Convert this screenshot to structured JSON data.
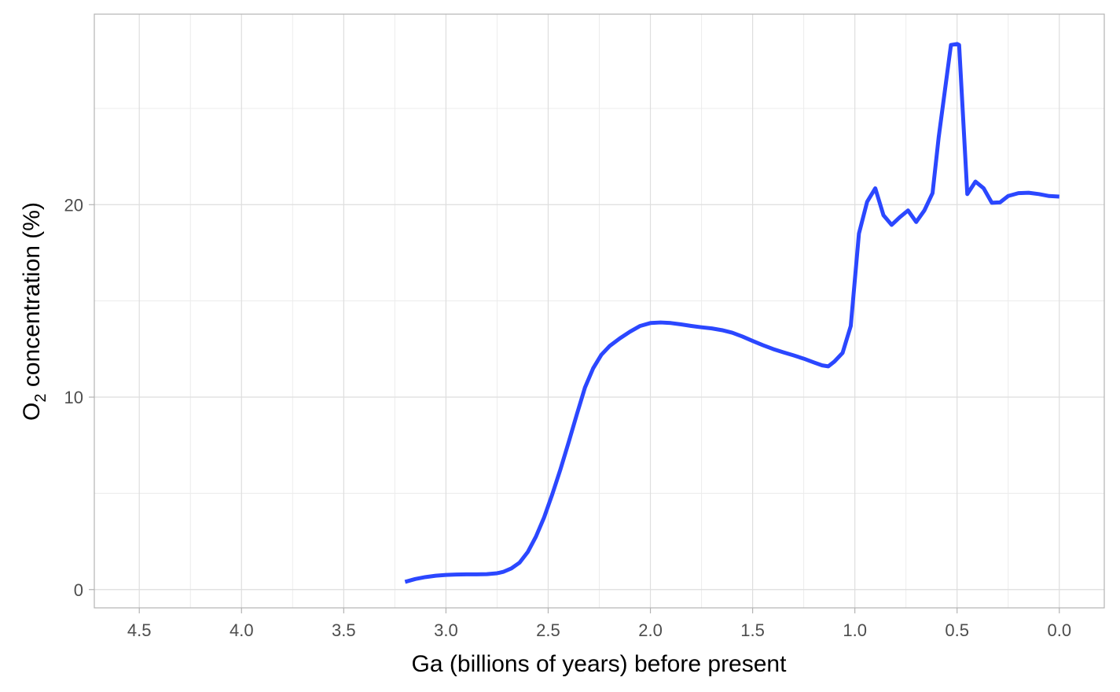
{
  "chart_data": {
    "type": "line",
    "xlabel": "Ga (billions of years) before present",
    "ylabel": {
      "prefix": "O",
      "subscript": "2",
      "suffix": " concentration (%)"
    },
    "x_reversed": true,
    "xlim": [
      4.72,
      -0.22
    ],
    "ylim": [
      -0.95,
      29.9
    ],
    "x_ticks": [
      4.5,
      4.0,
      3.5,
      3.0,
      2.5,
      2.0,
      1.5,
      1.0,
      0.5,
      0.0
    ],
    "x_tick_labels": [
      "4.5",
      "4.0",
      "3.5",
      "3.0",
      "2.5",
      "2.0",
      "1.5",
      "1.0",
      "0.5",
      "0.0"
    ],
    "x_minor_ticks": [
      4.25,
      3.75,
      3.25,
      2.75,
      2.25,
      1.75,
      1.25,
      0.75,
      0.25
    ],
    "y_ticks": [
      0,
      10,
      20
    ],
    "y_tick_labels": [
      "0",
      "10",
      "20"
    ],
    "y_minor_ticks": [
      5,
      15,
      25
    ],
    "grid": true,
    "colors": {
      "line": "#2b47ff",
      "grid_major": "#dedede",
      "grid_minor": "#ececec",
      "panel_border": "#b3b3b3",
      "tick": "#b3b3b3"
    },
    "series": [
      {
        "x": [
          3.2,
          3.15,
          3.1,
          3.05,
          3.0,
          2.95,
          2.9,
          2.85,
          2.8,
          2.75,
          2.72,
          2.68,
          2.64,
          2.6,
          2.56,
          2.52,
          2.48,
          2.44,
          2.4,
          2.36,
          2.32,
          2.28,
          2.24,
          2.2,
          2.15,
          2.1,
          2.05,
          2.0,
          1.95,
          1.9,
          1.85,
          1.8,
          1.75,
          1.7,
          1.65,
          1.6,
          1.55,
          1.5,
          1.45,
          1.4,
          1.35,
          1.3,
          1.25,
          1.2,
          1.16,
          1.13,
          1.1,
          1.06,
          1.02,
          0.98,
          0.94,
          0.9,
          0.86,
          0.82,
          0.78,
          0.74,
          0.7,
          0.66,
          0.62,
          0.59,
          0.53,
          0.5,
          0.49,
          0.45,
          0.41,
          0.37,
          0.33,
          0.29,
          0.25,
          0.2,
          0.15,
          0.1,
          0.05,
          0.0
        ],
        "y": [
          0.4,
          0.55,
          0.65,
          0.72,
          0.76,
          0.78,
          0.79,
          0.79,
          0.8,
          0.85,
          0.92,
          1.1,
          1.4,
          1.95,
          2.75,
          3.75,
          4.95,
          6.25,
          7.65,
          9.1,
          10.5,
          11.5,
          12.2,
          12.65,
          13.05,
          13.4,
          13.7,
          13.85,
          13.88,
          13.85,
          13.78,
          13.7,
          13.63,
          13.57,
          13.48,
          13.35,
          13.15,
          12.92,
          12.7,
          12.5,
          12.33,
          12.17,
          12.0,
          11.8,
          11.65,
          11.6,
          11.85,
          12.3,
          13.7,
          18.5,
          20.15,
          20.85,
          19.45,
          18.95,
          19.35,
          19.7,
          19.1,
          19.7,
          20.6,
          23.5,
          28.3,
          28.35,
          28.3,
          20.55,
          21.2,
          20.85,
          20.1,
          20.12,
          20.45,
          20.6,
          20.62,
          20.55,
          20.45,
          20.42
        ]
      }
    ]
  }
}
